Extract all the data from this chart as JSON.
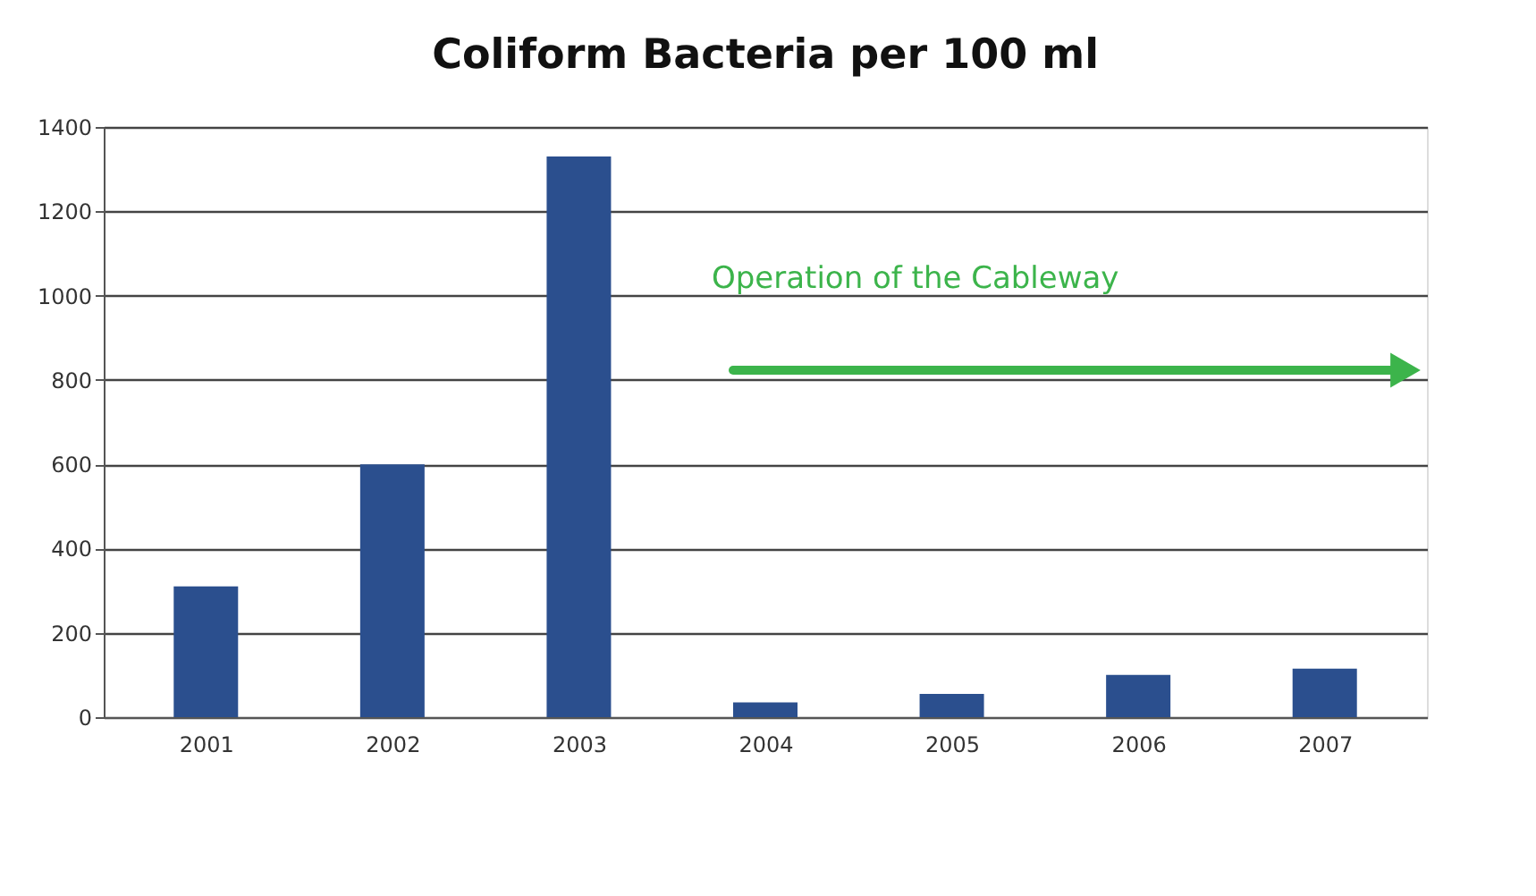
{
  "chart_data": {
    "type": "bar",
    "title": "Coliform Bacteria per 100 ml",
    "categories": [
      "2001",
      "2002",
      "2003",
      "2004",
      "2005",
      "2006",
      "2007"
    ],
    "values": [
      310,
      600,
      1330,
      35,
      55,
      100,
      115
    ],
    "color": "#2b4f8e",
    "ylim": [
      0,
      1400
    ],
    "yticks": [
      0,
      200,
      400,
      600,
      800,
      1000,
      1200,
      1400
    ],
    "grid": "y",
    "annotations": [
      {
        "text": "Operation of the Cableway"
      }
    ]
  }
}
